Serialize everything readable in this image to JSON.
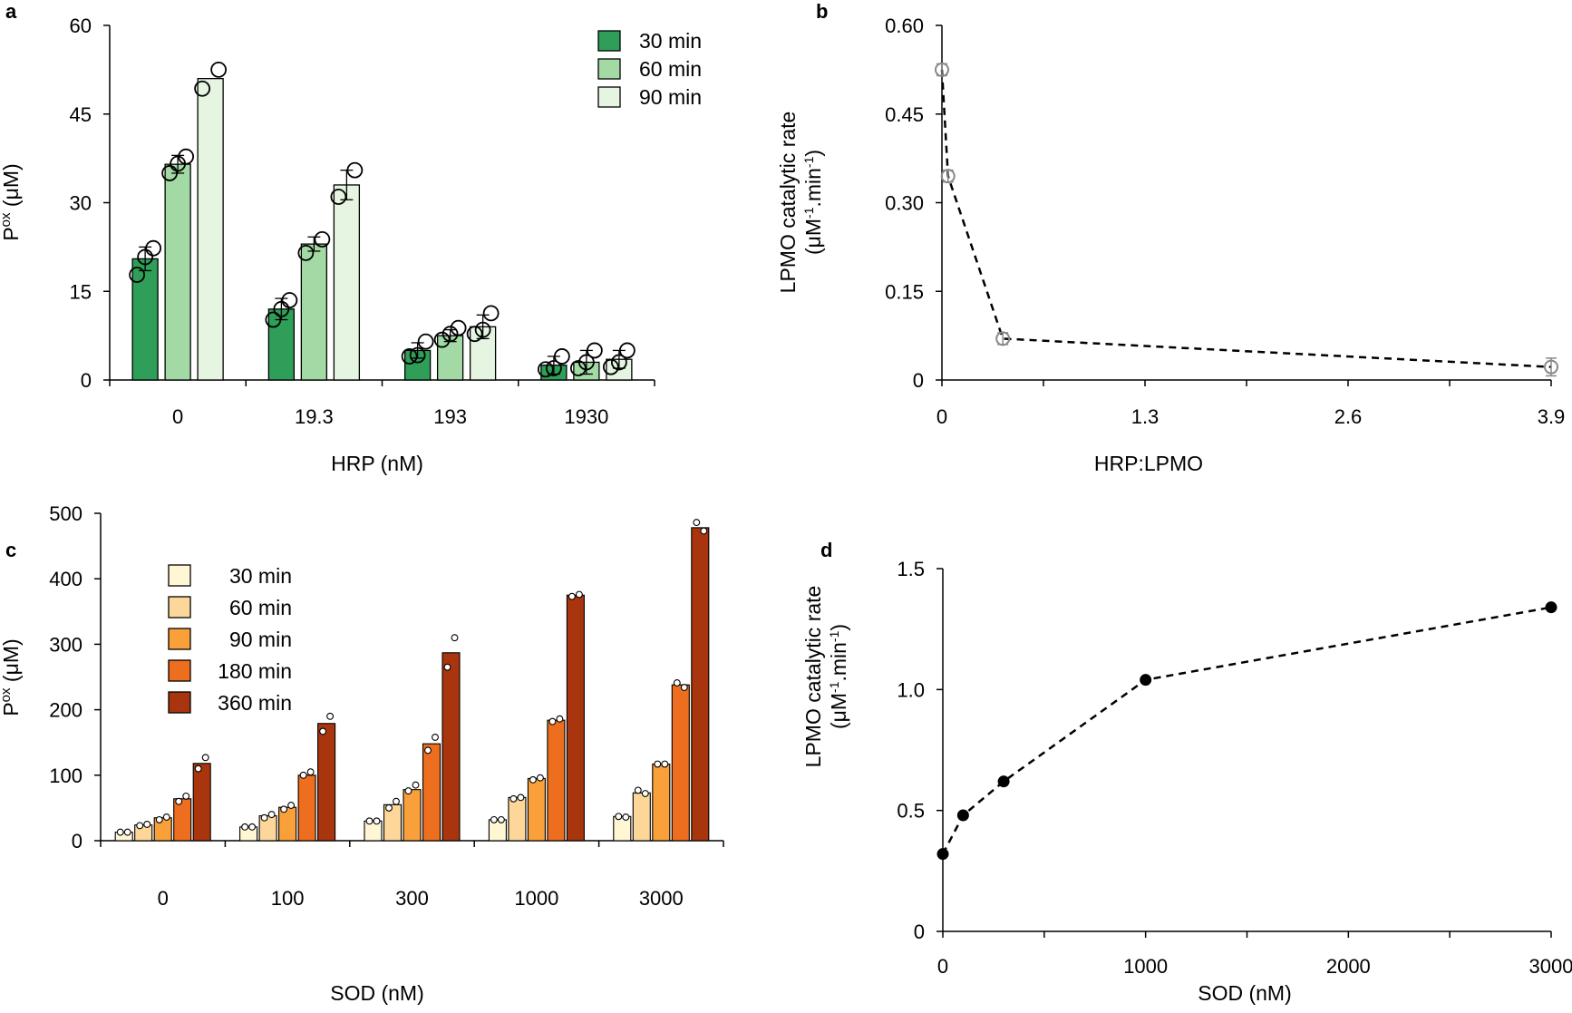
{
  "colors": {
    "a_30": "#2e9e58",
    "a_60": "#a2d9a4",
    "a_90": "#e6f5e1",
    "c_30": "#fff6d3",
    "c_60": "#fdd79a",
    "c_90": "#f9a03a",
    "c_180": "#ec6e1e",
    "c_360": "#a8350d",
    "b_marker": "#888888",
    "d_marker": "#000000"
  },
  "chart_data": [
    {
      "panel": "a",
      "type": "bar",
      "xlabel": "HRP (nM)",
      "ylabel_main": "P",
      "ylabel_sup": "ox",
      "ylabel_tail": " (μM)",
      "categories": [
        "0",
        "19.3",
        "193",
        "1930"
      ],
      "ylim": [
        0,
        60
      ],
      "yticks": [
        "0",
        "15",
        "30",
        "45",
        "60"
      ],
      "legend": {
        "position": "top-right"
      },
      "series": [
        {
          "name": "30 min",
          "values": [
            20.5,
            12.0,
            5.0,
            2.5
          ],
          "errors": [
            2.0,
            1.8,
            1.3,
            1.5
          ],
          "replicates": [
            [
              17.8,
              20.8,
              22.3
            ],
            [
              10.2,
              12.0,
              13.5
            ],
            [
              4.0,
              4.2,
              6.5
            ],
            [
              1.8,
              2.0,
              4.0
            ]
          ]
        },
        {
          "name": "60 min",
          "values": [
            36.5,
            23.0,
            7.5,
            3.0
          ],
          "errors": [
            1.5,
            1.2,
            1.0,
            2.0
          ],
          "replicates": [
            [
              35.0,
              36.6,
              37.8
            ],
            [
              21.5,
              23.8
            ],
            [
              6.8,
              7.8,
              8.8
            ],
            [
              2.0,
              3.0,
              5.0
            ]
          ]
        },
        {
          "name": "90 min",
          "values": [
            51.0,
            33.0,
            9.0,
            3.5
          ],
          "errors": [
            0,
            2.5,
            2.0,
            1.5
          ],
          "replicates": [
            [
              49.3,
              52.5
            ],
            [
              31.0,
              35.5
            ],
            [
              7.8,
              8.5,
              11.3
            ],
            [
              2.2,
              3.0,
              5.0
            ]
          ]
        }
      ]
    },
    {
      "panel": "b",
      "type": "line",
      "style": "dashed, open circle markers",
      "xlabel": "HRP:LPMO",
      "ylabel_line1": "LPMO catalytic rate",
      "ylabel_line2_pre": "(μM",
      "ylabel_line2_sup1": "-1",
      "ylabel_line2_mid": ".min",
      "ylabel_line2_sup2": "-1",
      "ylabel_line2_post": ")",
      "xlim": [
        0,
        3.9
      ],
      "ylim": [
        0,
        0.6
      ],
      "xticks": [
        "0",
        "1.3",
        "2.6",
        "3.9"
      ],
      "yticks": [
        "0",
        "0.15",
        "0.30",
        "0.45",
        "0.60"
      ],
      "x": [
        0,
        0.039,
        0.39,
        3.9
      ],
      "y": [
        0.525,
        0.345,
        0.07,
        0.022
      ],
      "errors": [
        0.01,
        0.01,
        0.01,
        0.015
      ]
    },
    {
      "panel": "c",
      "type": "bar",
      "xlabel": "SOD (nM)",
      "ylabel_main": "P",
      "ylabel_sup": "ox",
      "ylabel_tail": " (μM)",
      "categories": [
        "0",
        "100",
        "300",
        "1000",
        "3000"
      ],
      "ylim": [
        0,
        500
      ],
      "yticks": [
        "0",
        "100",
        "200",
        "300",
        "400",
        "500"
      ],
      "legend": {
        "position": "top-left"
      },
      "series": [
        {
          "name": "30 min",
          "values": [
            13,
            21,
            30,
            32,
            37
          ],
          "replicates": [
            [
              13,
              13
            ],
            [
              21,
              21
            ],
            [
              30,
              30
            ],
            [
              32,
              32
            ],
            [
              37,
              36
            ]
          ]
        },
        {
          "name": "60 min",
          "values": [
            24,
            38,
            55,
            66,
            73
          ],
          "replicates": [
            [
              23,
              25
            ],
            [
              35,
              40
            ],
            [
              50,
              60
            ],
            [
              64,
              66
            ],
            [
              77,
              72
            ]
          ]
        },
        {
          "name": "90 min",
          "values": [
            35,
            51,
            78,
            95,
            117
          ],
          "replicates": [
            [
              32,
              36
            ],
            [
              48,
              54
            ],
            [
              76,
              85
            ],
            [
              93,
              96
            ],
            [
              117,
              117
            ]
          ]
        },
        {
          "name": "180 min",
          "values": [
            64,
            100,
            148,
            184,
            238
          ],
          "replicates": [
            [
              60,
              68
            ],
            [
              100,
              105
            ],
            [
              138,
              158
            ],
            [
              182,
              186
            ],
            [
              241,
              234
            ]
          ]
        },
        {
          "name": "360 min",
          "values": [
            118,
            179,
            287,
            375,
            478
          ],
          "replicates": [
            [
              110,
              127
            ],
            [
              167,
              190
            ],
            [
              265,
              310
            ],
            [
              373,
              376
            ],
            [
              486,
              473
            ]
          ]
        }
      ]
    },
    {
      "panel": "d",
      "type": "line",
      "style": "dashed, filled circle markers",
      "xlabel": "SOD (nM)",
      "ylabel_line1": "LPMO catalytic rate",
      "ylabel_line2_pre": "(μM",
      "ylabel_line2_sup1": "-1",
      "ylabel_line2_mid": ".min",
      "ylabel_line2_sup2": "-1",
      "ylabel_line2_post": ")",
      "xlim": [
        0,
        3000
      ],
      "ylim": [
        0,
        1.5
      ],
      "xticks": [
        "0",
        "1000",
        "2000",
        "3000"
      ],
      "yticks": [
        "0",
        "0.5",
        "1.0",
        "1.5"
      ],
      "x": [
        0,
        100,
        300,
        1000,
        3000
      ],
      "y": [
        0.32,
        0.48,
        0.62,
        1.04,
        1.34
      ]
    }
  ]
}
